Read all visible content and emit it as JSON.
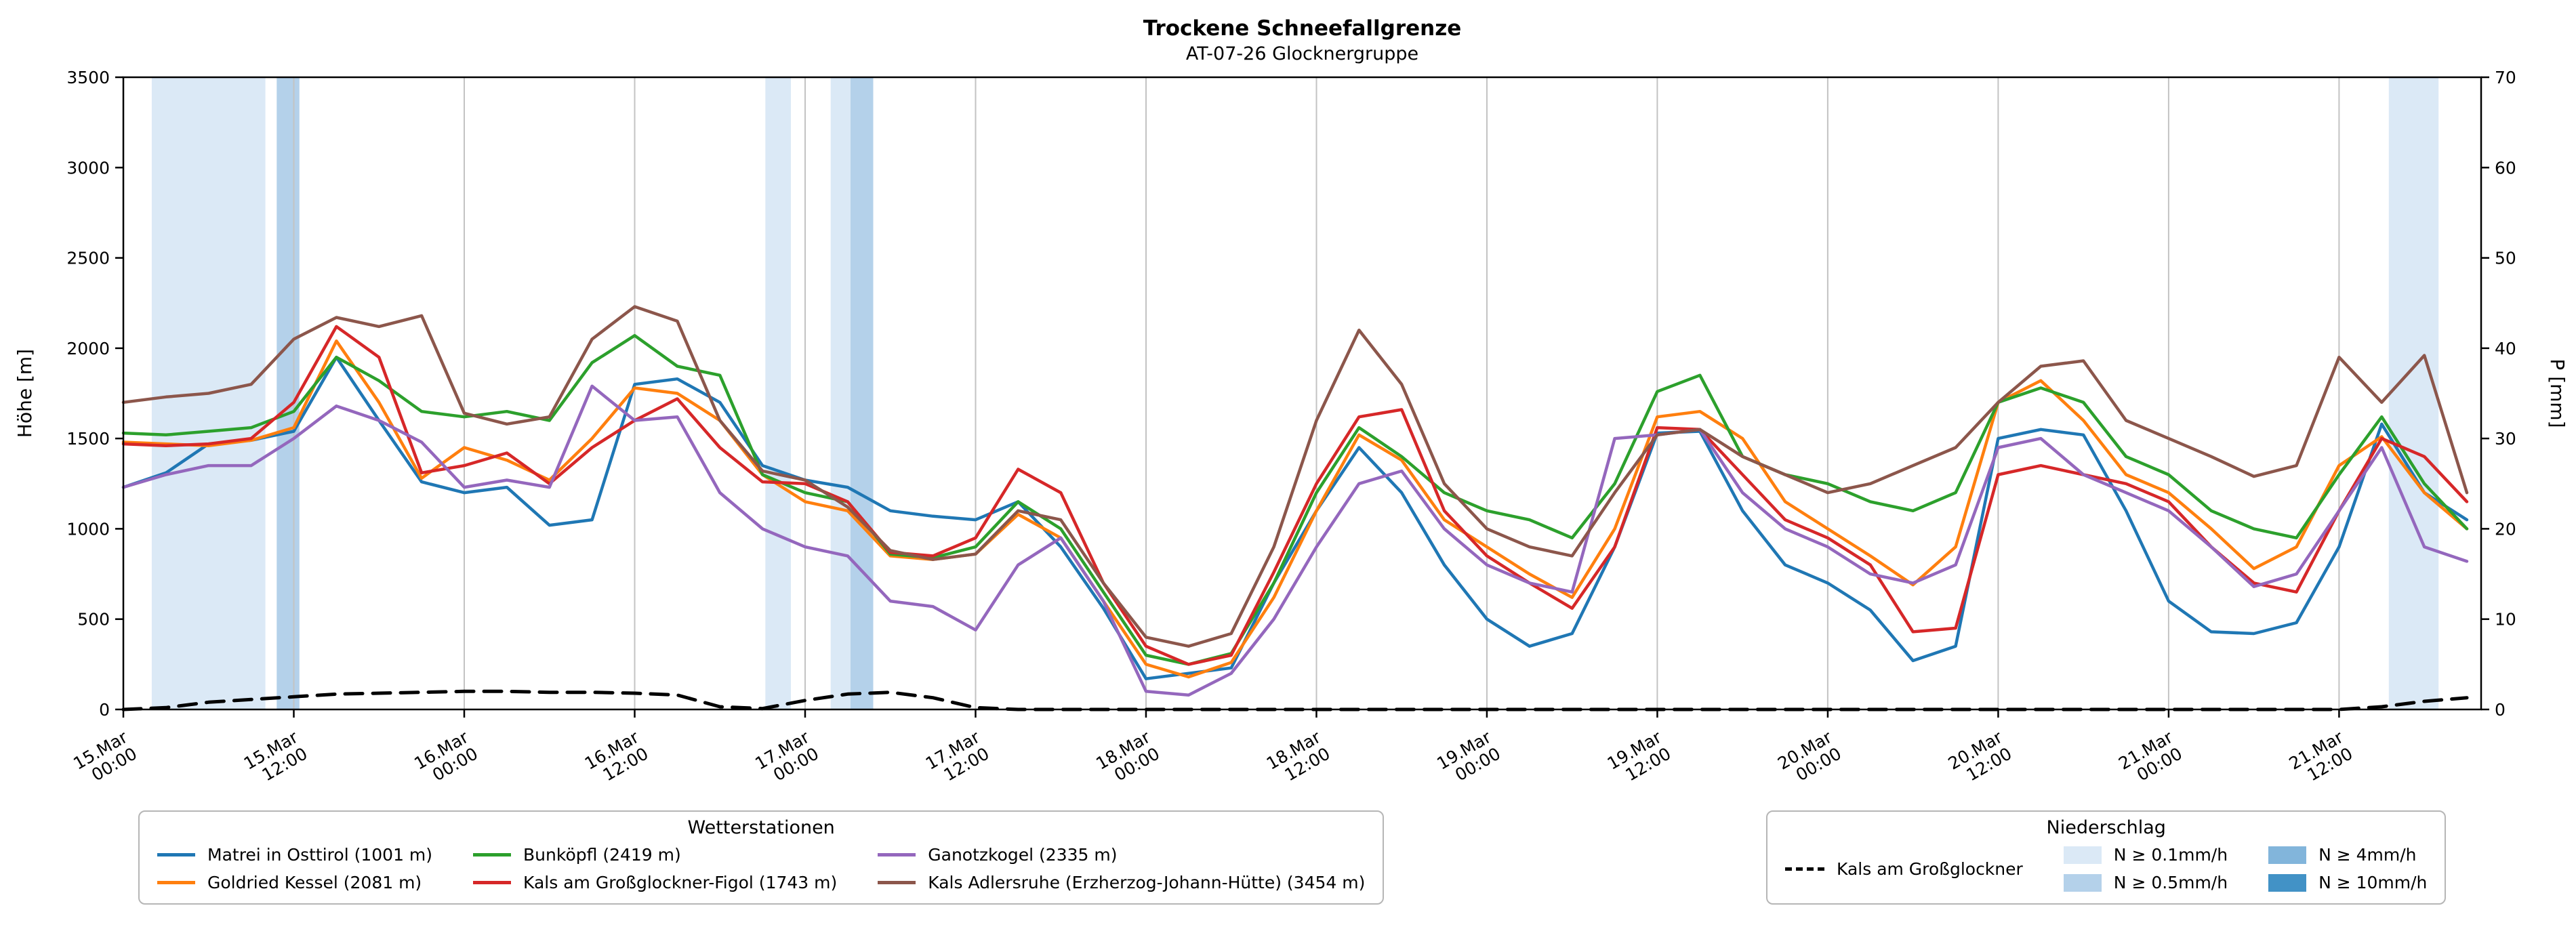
{
  "chart_data": {
    "type": "line",
    "title": "Trockene Schneefallgrenze",
    "subtitle": "AT-07-26 Glocknergruppe",
    "ylabel_left": "Höhe [m]",
    "ylabel_right": "P [mm]",
    "ylim_left": [
      0,
      3500
    ],
    "ylim_right": [
      0,
      70
    ],
    "yticks_left": [
      0,
      500,
      1000,
      1500,
      2000,
      2500,
      3000,
      3500
    ],
    "yticks_right": [
      0,
      10,
      20,
      30,
      40,
      50,
      60,
      70
    ],
    "grid": "vertical-only",
    "legend_position": "bottom",
    "x_unit": "hours since 15.Mar 00:00",
    "xlim": [
      0,
      166
    ],
    "x_tick_label_rotation_deg": 30,
    "x_ticks": [
      {
        "h": 0,
        "line1": "15.Mar",
        "line2": "00:00"
      },
      {
        "h": 12,
        "line1": "15.Mar",
        "line2": "12:00"
      },
      {
        "h": 24,
        "line1": "16.Mar",
        "line2": "00:00"
      },
      {
        "h": 36,
        "line1": "16.Mar",
        "line2": "12:00"
      },
      {
        "h": 48,
        "line1": "17.Mar",
        "line2": "00:00"
      },
      {
        "h": 60,
        "line1": "17.Mar",
        "line2": "12:00"
      },
      {
        "h": 72,
        "line1": "18.Mar",
        "line2": "00:00"
      },
      {
        "h": 84,
        "line1": "18.Mar",
        "line2": "12:00"
      },
      {
        "h": 96,
        "line1": "19.Mar",
        "line2": "00:00"
      },
      {
        "h": 108,
        "line1": "19.Mar",
        "line2": "12:00"
      },
      {
        "h": 120,
        "line1": "20.Mar",
        "line2": "00:00"
      },
      {
        "h": 132,
        "line1": "20.Mar",
        "line2": "12:00"
      },
      {
        "h": 144,
        "line1": "21.Mar",
        "line2": "00:00"
      },
      {
        "h": 156,
        "line1": "21.Mar",
        "line2": "12:00"
      }
    ],
    "x_hours": [
      0,
      3,
      6,
      9,
      12,
      15,
      18,
      21,
      24,
      27,
      30,
      33,
      36,
      39,
      42,
      45,
      48,
      51,
      54,
      57,
      60,
      63,
      66,
      69,
      72,
      75,
      78,
      81,
      84,
      87,
      90,
      93,
      96,
      99,
      102,
      105,
      108,
      111,
      114,
      117,
      120,
      123,
      126,
      129,
      132,
      135,
      138,
      141,
      144,
      147,
      150,
      153,
      156,
      159,
      162,
      165
    ],
    "series": [
      {
        "name": "Matrei in Osttirol (1001 m)",
        "color": "#1f77b4",
        "axis": "left",
        "values": [
          1230,
          1310,
          1470,
          1490,
          1540,
          1950,
          1600,
          1260,
          1200,
          1230,
          1020,
          1050,
          1800,
          1830,
          1700,
          1350,
          1270,
          1230,
          1100,
          1070,
          1050,
          1150,
          900,
          560,
          170,
          200,
          230,
          700,
          1100,
          1450,
          1200,
          800,
          500,
          350,
          420,
          900,
          1530,
          1540,
          1100,
          800,
          700,
          550,
          270,
          350,
          1500,
          1550,
          1520,
          1100,
          600,
          430,
          420,
          480,
          900,
          1580,
          1200,
          1050
        ]
      },
      {
        "name": "Goldried Kessel (2081 m)",
        "color": "#ff7f0e",
        "axis": "left",
        "values": [
          1480,
          1470,
          1460,
          1490,
          1560,
          2040,
          1700,
          1280,
          1450,
          1380,
          1270,
          1500,
          1780,
          1750,
          1600,
          1300,
          1150,
          1100,
          850,
          830,
          860,
          1080,
          950,
          600,
          250,
          180,
          260,
          620,
          1100,
          1520,
          1380,
          1050,
          900,
          750,
          620,
          1000,
          1620,
          1650,
          1500,
          1150,
          1000,
          850,
          690,
          900,
          1700,
          1820,
          1600,
          1300,
          1200,
          1000,
          780,
          900,
          1350,
          1510,
          1200,
          1000
        ]
      },
      {
        "name": "Bunköpfl (2419 m)",
        "color": "#2ca02c",
        "axis": "left",
        "values": [
          1530,
          1520,
          1540,
          1560,
          1650,
          1950,
          1820,
          1650,
          1620,
          1650,
          1600,
          1920,
          2070,
          1900,
          1850,
          1300,
          1200,
          1150,
          860,
          840,
          900,
          1150,
          1000,
          650,
          300,
          250,
          310,
          700,
          1200,
          1560,
          1400,
          1200,
          1100,
          1050,
          950,
          1250,
          1760,
          1850,
          1400,
          1300,
          1250,
          1150,
          1100,
          1200,
          1700,
          1780,
          1700,
          1400,
          1300,
          1100,
          1000,
          950,
          1300,
          1620,
          1250,
          1000
        ]
      },
      {
        "name": "Kals am Großglockner-Figol (1743 m)",
        "color": "#d62728",
        "axis": "left",
        "values": [
          1470,
          1460,
          1470,
          1500,
          1700,
          2120,
          1950,
          1310,
          1350,
          1420,
          1250,
          1450,
          1600,
          1720,
          1450,
          1260,
          1250,
          1150,
          870,
          850,
          950,
          1330,
          1200,
          700,
          350,
          250,
          300,
          760,
          1250,
          1620,
          1660,
          1100,
          850,
          700,
          560,
          900,
          1560,
          1550,
          1300,
          1050,
          950,
          800,
          430,
          450,
          1300,
          1350,
          1300,
          1250,
          1150,
          900,
          700,
          650,
          1100,
          1500,
          1400,
          1150
        ]
      },
      {
        "name": "Ganotzkogel (2335 m)",
        "color": "#9467bd",
        "axis": "left",
        "values": [
          1230,
          1300,
          1350,
          1350,
          1500,
          1680,
          1600,
          1480,
          1230,
          1270,
          1230,
          1790,
          1600,
          1620,
          1200,
          1000,
          900,
          850,
          600,
          570,
          440,
          800,
          950,
          600,
          100,
          80,
          200,
          500,
          900,
          1250,
          1320,
          1000,
          800,
          700,
          650,
          1500,
          1520,
          1550,
          1200,
          1000,
          900,
          750,
          700,
          800,
          1450,
          1500,
          1300,
          1200,
          1100,
          900,
          680,
          750,
          1100,
          1450,
          900,
          820
        ]
      },
      {
        "name": "Kals Adlersruhe (Erzherzog-Johann-Hütte) (3454 m)",
        "color": "#8c564b",
        "axis": "left",
        "values": [
          1700,
          1730,
          1750,
          1800,
          2050,
          2170,
          2120,
          2180,
          1640,
          1580,
          1620,
          2050,
          2230,
          2150,
          1600,
          1320,
          1270,
          1120,
          880,
          830,
          860,
          1100,
          1050,
          700,
          400,
          350,
          420,
          900,
          1600,
          2100,
          1800,
          1250,
          1000,
          900,
          850,
          1200,
          1520,
          1550,
          1400,
          1300,
          1200,
          1250,
          1350,
          1450,
          1700,
          1900,
          1930,
          1600,
          1500,
          1400,
          1290,
          1350,
          1950,
          1700,
          1960,
          1200
        ]
      }
    ],
    "precip_line": {
      "name": "Kals am Großglockner",
      "color": "#000000",
      "style": "dashed",
      "axis": "right",
      "values": [
        0,
        0.2,
        0.8,
        1.1,
        1.4,
        1.7,
        1.8,
        1.9,
        2.0,
        2.0,
        1.9,
        1.9,
        1.8,
        1.6,
        0.3,
        0.1,
        1.0,
        1.7,
        1.9,
        1.3,
        0.2,
        0,
        0,
        0,
        0,
        0,
        0,
        0,
        0,
        0,
        0,
        0,
        0,
        0,
        0,
        0,
        0,
        0,
        0,
        0,
        0,
        0,
        0,
        0,
        0,
        0,
        0,
        0,
        0,
        0,
        0,
        0,
        0,
        0.3,
        0.9,
        1.3
      ]
    },
    "band_levels": [
      {
        "label": "N ≥ 0.1mm/h",
        "color": "#dbe9f6"
      },
      {
        "label": "N ≥ 0.5mm/h",
        "color": "#b4d1ea"
      },
      {
        "label": "N ≥ 4mm/h",
        "color": "#82b5db"
      },
      {
        "label": "N ≥ 10mm/h",
        "color": "#4292c6"
      }
    ],
    "precip_bands": [
      {
        "start_h": 2.0,
        "end_h": 10.0,
        "level": "N ≥ 0.1mm/h"
      },
      {
        "start_h": 10.8,
        "end_h": 12.4,
        "level": "N ≥ 0.5mm/h"
      },
      {
        "start_h": 45.2,
        "end_h": 47.0,
        "level": "N ≥ 0.1mm/h"
      },
      {
        "start_h": 49.8,
        "end_h": 51.2,
        "level": "N ≥ 0.1mm/h"
      },
      {
        "start_h": 51.2,
        "end_h": 52.8,
        "level": "N ≥ 0.5mm/h"
      },
      {
        "start_h": 159.5,
        "end_h": 163.0,
        "level": "N ≥ 0.1mm/h"
      }
    ]
  },
  "legend_stations": {
    "title": "Wetterstationen"
  },
  "legend_precip": {
    "title": "Niederschlag"
  }
}
